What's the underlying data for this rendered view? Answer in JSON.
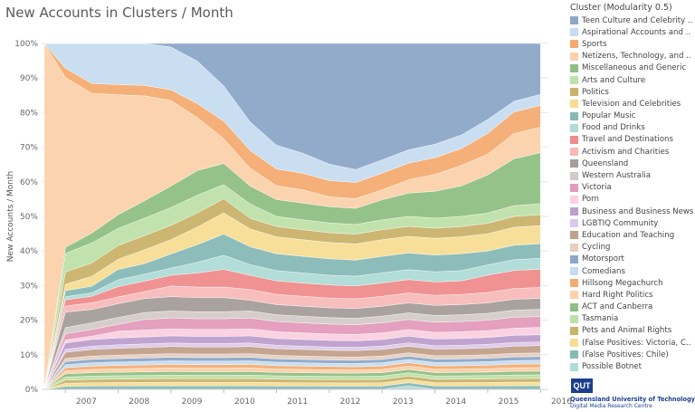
{
  "title": "New Accounts in Clusters / Month",
  "legend": {
    "title": "Cluster (Modularity 0.5)",
    "items": [
      {
        "label": "Teen Culture and Celebrity ..",
        "color": "#8ca7c8"
      },
      {
        "label": "Aspirational Accounts and ..",
        "color": "#c6dcf0"
      },
      {
        "label": "Sports",
        "color": "#f4ac72"
      },
      {
        "label": "Netizens, Technology, and ..",
        "color": "#fbd1aa"
      },
      {
        "label": "Miscellaneous and Generic",
        "color": "#8fbf83"
      },
      {
        "label": "Arts and Culture",
        "color": "#bfe0a9"
      },
      {
        "label": "Politics",
        "color": "#c9b26a"
      },
      {
        "label": "Television and Celebrities",
        "color": "#f7dd94"
      },
      {
        "label": "Popular Music",
        "color": "#86b9b6"
      },
      {
        "label": "Food and Drinks",
        "color": "#aedbd6"
      },
      {
        "label": "Travel and Destinations",
        "color": "#ef8c8c"
      },
      {
        "label": "Activism and Charities",
        "color": "#f8b9b9"
      },
      {
        "label": "Queensland",
        "color": "#a49d99"
      },
      {
        "label": "Western Australia",
        "color": "#d3cbc7"
      },
      {
        "label": "Victoria",
        "color": "#e39bbb"
      },
      {
        "label": "Porn",
        "color": "#fad0e0"
      },
      {
        "label": "Business and Business News",
        "color": "#bd9fcc"
      },
      {
        "label": "LGBTIQ Community",
        "color": "#ddc9ea"
      },
      {
        "label": "Education and Teaching",
        "color": "#c2a08a"
      },
      {
        "label": "Cycling",
        "color": "#e6cfbf"
      },
      {
        "label": "Motorsport",
        "color": "#8ca7c8"
      },
      {
        "label": "Comedians",
        "color": "#c6dcf0"
      },
      {
        "label": "Hillsong Megachurch",
        "color": "#f4ac72"
      },
      {
        "label": "Hard Right Politics",
        "color": "#fbd1aa"
      },
      {
        "label": "ACT and Canberra",
        "color": "#8fbf83"
      },
      {
        "label": "Tasmania",
        "color": "#bfe0a9"
      },
      {
        "label": "Pets and Animal Rights",
        "color": "#c9b26a"
      },
      {
        "label": "(False Positives: Victoria, C..",
        "color": "#f7dd94"
      },
      {
        "label": "(False Positives: Chile)",
        "color": "#86b9b6"
      },
      {
        "label": "Possible Botnet",
        "color": "#aedbd6"
      }
    ]
  },
  "logo": {
    "mark": "QUT",
    "line1": "Queensland University of Technology",
    "line2": "Digital Media Research Centre"
  },
  "chart_data": {
    "type": "area",
    "stacked": "percent",
    "title": "New Accounts in Clusters / Month",
    "ylabel": "New Accounts / Month",
    "xlabel": "",
    "ylim": [
      0,
      100
    ],
    "y_ticks": [
      "0%",
      "10%",
      "20%",
      "30%",
      "40%",
      "50%",
      "60%",
      "70%",
      "80%",
      "90%",
      "100%"
    ],
    "x_ticks": [
      "2007",
      "2008",
      "2009",
      "2010",
      "2011",
      "2012",
      "2013",
      "2014",
      "2015",
      "2016"
    ],
    "grid": true,
    "legend_position": "right",
    "x": [
      2006.6,
      2007.0,
      2007.5,
      2008.0,
      2008.5,
      2009.0,
      2009.5,
      2010.0,
      2010.5,
      2011.0,
      2011.5,
      2012.0,
      2012.5,
      2013.0,
      2013.5,
      2014.0,
      2014.5,
      2015.0,
      2015.5,
      2016.0
    ],
    "series": [
      {
        "name": "Teen Culture and Celebrity ..",
        "values": [
          0,
          0,
          0,
          0,
          0,
          1,
          5,
          12,
          22,
          30,
          33,
          37,
          39,
          35,
          32,
          30,
          27,
          22,
          16,
          14
        ]
      },
      {
        "name": "Aspirational Accounts and ..",
        "values": [
          0,
          8,
          12,
          12,
          12,
          12,
          12,
          10,
          8,
          7,
          6,
          5,
          4,
          4,
          4,
          4,
          4,
          4,
          3,
          3
        ]
      },
      {
        "name": "Sports",
        "values": [
          0,
          3,
          3,
          3,
          3,
          3,
          4,
          5,
          5,
          5,
          5,
          5,
          5,
          5,
          5,
          5,
          5,
          6,
          6,
          6
        ]
      },
      {
        "name": "Netizens, Technology, and ..",
        "values": [
          100,
          55,
          42,
          35,
          30,
          24,
          15,
          7,
          5,
          4,
          4,
          3,
          3,
          3,
          4,
          5,
          6,
          6,
          7,
          7
        ]
      },
      {
        "name": "Miscellaneous and Generic",
        "values": [
          0,
          2,
          3,
          4,
          5,
          6,
          7,
          6,
          5,
          5,
          5,
          5,
          5,
          6,
          7,
          8,
          9,
          11,
          13,
          14
        ]
      },
      {
        "name": "Arts and Culture",
        "values": [
          0,
          6,
          6,
          5,
          5,
          5,
          5,
          4,
          4,
          3,
          3,
          3,
          3,
          3,
          3,
          3,
          3,
          3,
          3,
          3
        ]
      },
      {
        "name": "Politics",
        "values": [
          0,
          4,
          4,
          4,
          4,
          4,
          4,
          4,
          3,
          3,
          3,
          3,
          3,
          3,
          3,
          3,
          3,
          3,
          3,
          3
        ]
      },
      {
        "name": "Television and Celebrities",
        "values": [
          0,
          2,
          3,
          3,
          4,
          4,
          5,
          6,
          5,
          5,
          5,
          5,
          5,
          5,
          5,
          5,
          5,
          5,
          5,
          5
        ]
      },
      {
        "name": "Popular Music",
        "values": [
          0,
          2,
          2,
          3,
          3,
          4,
          5,
          6,
          5,
          5,
          5,
          5,
          5,
          5,
          5,
          5,
          5,
          4,
          4,
          4
        ]
      },
      {
        "name": "Food and Drinks",
        "values": [
          0,
          1,
          1,
          2,
          2,
          2,
          3,
          4,
          3,
          3,
          3,
          3,
          3,
          3,
          3,
          3,
          3,
          3,
          3,
          3
        ]
      },
      {
        "name": "Travel and Destinations",
        "values": [
          0,
          2,
          2,
          3,
          3,
          3,
          4,
          5,
          4,
          4,
          4,
          4,
          4,
          4,
          4,
          4,
          4,
          5,
          5,
          5
        ]
      },
      {
        "name": "Activism and Charities",
        "values": [
          0,
          2,
          2,
          2,
          2,
          3,
          3,
          3,
          3,
          3,
          3,
          3,
          3,
          3,
          3,
          3,
          3,
          3,
          3,
          3
        ]
      },
      {
        "name": "Queensland",
        "values": [
          0,
          5,
          4,
          4,
          4,
          4,
          4,
          4,
          3,
          3,
          3,
          3,
          3,
          3,
          3,
          3,
          3,
          3,
          3,
          3
        ]
      },
      {
        "name": "Western Australia",
        "values": [
          0,
          2,
          2,
          2,
          2,
          2,
          2,
          2,
          2,
          2,
          2,
          2,
          2,
          2,
          2,
          2,
          2,
          2,
          2,
          2
        ]
      },
      {
        "name": "Victoria",
        "values": [
          0,
          2,
          2,
          2,
          3,
          3,
          3,
          3,
          3,
          3,
          3,
          3,
          3,
          3,
          3,
          3,
          3,
          3,
          3,
          3
        ]
      },
      {
        "name": "Porn",
        "values": [
          0,
          1,
          1,
          2,
          2,
          2,
          2,
          2,
          2,
          2,
          2,
          2,
          2,
          2,
          2,
          2,
          2,
          2,
          2,
          2
        ]
      },
      {
        "name": "Business and Business News",
        "values": [
          0,
          2,
          2,
          2,
          2,
          2,
          2,
          2,
          2,
          2,
          2,
          2,
          2,
          2,
          2,
          2,
          2,
          2,
          2,
          2
        ]
      },
      {
        "name": "LGBTIQ Community",
        "values": [
          0,
          1,
          1,
          1,
          1,
          1,
          1,
          1,
          1,
          1,
          1,
          1,
          1,
          1,
          1,
          1,
          1,
          1,
          1,
          1
        ]
      },
      {
        "name": "Education and Teaching",
        "values": [
          0,
          2,
          2,
          2,
          2,
          2,
          2,
          2,
          2,
          2,
          2,
          2,
          2,
          2,
          2,
          2,
          2,
          2,
          2,
          2
        ]
      },
      {
        "name": "Cycling",
        "values": [
          0,
          1,
          1,
          1,
          1,
          1,
          1,
          1,
          1,
          1,
          1,
          1,
          1,
          1,
          1,
          1,
          1,
          1,
          1,
          1
        ]
      },
      {
        "name": "Motorsport",
        "values": [
          0,
          1,
          1,
          1,
          1,
          1,
          1,
          1,
          1,
          1,
          1,
          1,
          1,
          1,
          1,
          1,
          1,
          1,
          1,
          1
        ]
      },
      {
        "name": "Comedians",
        "values": [
          0,
          1,
          1,
          1,
          1,
          1,
          1,
          1,
          1,
          1,
          1,
          1,
          1,
          1,
          1,
          1,
          1,
          1,
          1,
          1
        ]
      },
      {
        "name": "Hillsong Megachurch",
        "values": [
          0,
          1,
          1,
          1,
          1,
          1,
          1,
          1,
          1,
          1,
          1,
          1,
          1,
          1,
          1,
          1,
          1,
          1,
          1,
          1
        ]
      },
      {
        "name": "Hard Right Politics",
        "values": [
          0,
          1,
          1,
          1,
          1,
          1,
          1,
          1,
          1,
          1,
          1,
          1,
          1,
          1,
          1,
          1,
          1,
          1,
          1,
          1
        ]
      },
      {
        "name": "ACT and Canberra",
        "values": [
          0,
          1,
          1,
          1,
          1,
          1,
          1,
          1,
          1,
          1,
          1,
          1,
          1,
          1,
          1,
          1,
          1,
          1,
          1,
          1
        ]
      },
      {
        "name": "Tasmania",
        "values": [
          0,
          1,
          1,
          1,
          1,
          1,
          1,
          1,
          1,
          1,
          1,
          1,
          1,
          1,
          1,
          1,
          1,
          1,
          1,
          1
        ]
      },
      {
        "name": "Pets and Animal Rights",
        "values": [
          0,
          1,
          1,
          1,
          1,
          1,
          1,
          1,
          1,
          1,
          1,
          1,
          1,
          1,
          1,
          1,
          1,
          1,
          1,
          1
        ]
      },
      {
        "name": "(False Positives: Victoria, C..",
        "values": [
          0,
          1,
          1,
          1,
          1,
          1,
          1,
          1,
          1,
          1,
          1,
          1,
          1,
          1,
          1,
          1,
          1,
          1,
          1,
          1
        ]
      },
      {
        "name": "(False Positives: Chile)",
        "values": [
          0,
          1,
          1,
          1,
          1,
          1,
          1,
          1,
          1,
          1,
          1,
          1,
          1,
          1,
          1,
          1,
          1,
          1,
          1,
          1
        ]
      },
      {
        "name": "Possible Botnet",
        "values": [
          0,
          0,
          0,
          0,
          0,
          0,
          0,
          0,
          0,
          0,
          0,
          0,
          0,
          0,
          1,
          0,
          0,
          0,
          0,
          0
        ]
      }
    ]
  }
}
